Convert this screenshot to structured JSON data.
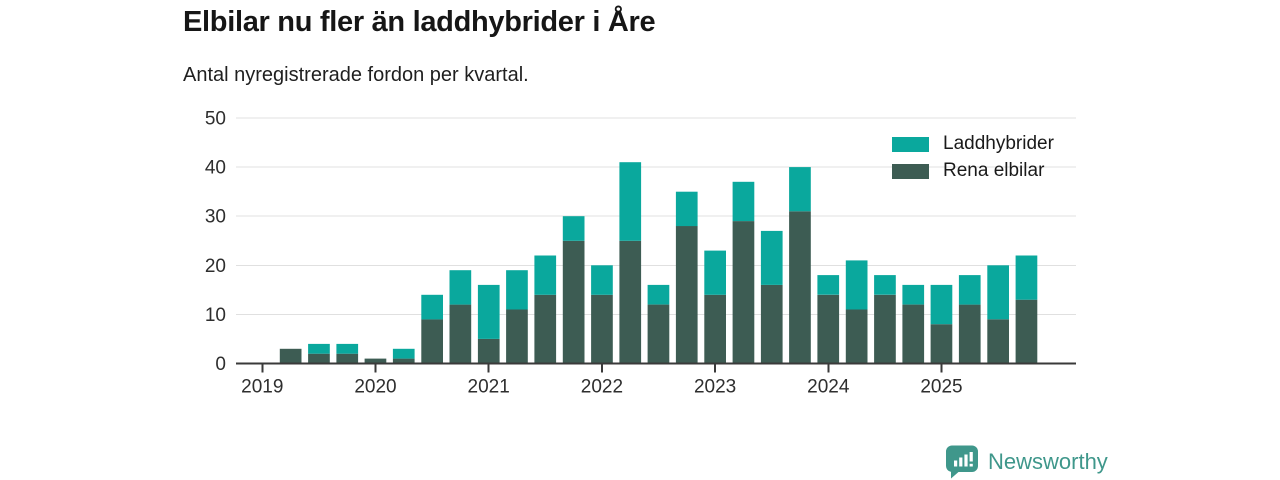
{
  "chart_data": {
    "type": "bar",
    "stacked": true,
    "title": "Elbilar nu fler än laddhybrider i Åre",
    "subtitle": "Antal nyregistrerade fordon per kvartal.",
    "xlabel": "",
    "ylabel": "",
    "ylim": [
      0,
      50
    ],
    "yticks": [
      0,
      10,
      20,
      30,
      40,
      50
    ],
    "xticks": [
      "2019",
      "2020",
      "2021",
      "2022",
      "2023",
      "2024",
      "2025"
    ],
    "grid": true,
    "legend_position": "top-right",
    "categories": [
      "2019 Q2",
      "2019 Q3",
      "2019 Q4",
      "2020 Q1",
      "2020 Q2",
      "2020 Q3",
      "2020 Q4",
      "2021 Q1",
      "2021 Q2",
      "2021 Q3",
      "2021 Q4",
      "2022 Q1",
      "2022 Q2",
      "2022 Q3",
      "2022 Q4",
      "2023 Q1",
      "2023 Q2",
      "2023 Q3",
      "2023 Q4",
      "2024 Q1",
      "2024 Q2",
      "2024 Q3",
      "2024 Q4",
      "2025 Q1",
      "2025 Q2",
      "2025 Q3",
      "2025 Q4"
    ],
    "series": [
      {
        "name": "Laddhybrider",
        "color": "#0aa89d",
        "values": [
          0,
          2,
          2,
          0,
          2,
          5,
          7,
          11,
          8,
          8,
          5,
          6,
          16,
          4,
          7,
          9,
          8,
          11,
          9,
          4,
          10,
          4,
          4,
          8,
          6,
          11,
          9
        ]
      },
      {
        "name": "Rena elbilar",
        "color": "#3d5c53",
        "values": [
          3,
          2,
          2,
          1,
          1,
          9,
          12,
          5,
          11,
          14,
          25,
          14,
          25,
          12,
          28,
          14,
          29,
          16,
          31,
          14,
          11,
          14,
          12,
          8,
          12,
          9,
          13
        ]
      }
    ],
    "stack_bottom_to_top": [
      "Rena elbilar",
      "Laddhybrider"
    ]
  },
  "colors": {
    "laddhybrider": "#0aa89d",
    "rena_elbilar": "#3d5c53",
    "gridline": "#e0e0e0",
    "axis": "#3a3a3a",
    "brand_teal": "#3f978b"
  },
  "footer": {
    "brand": "Newsworthy",
    "logo_icon": "bar-chart-speech-bubble-icon"
  }
}
